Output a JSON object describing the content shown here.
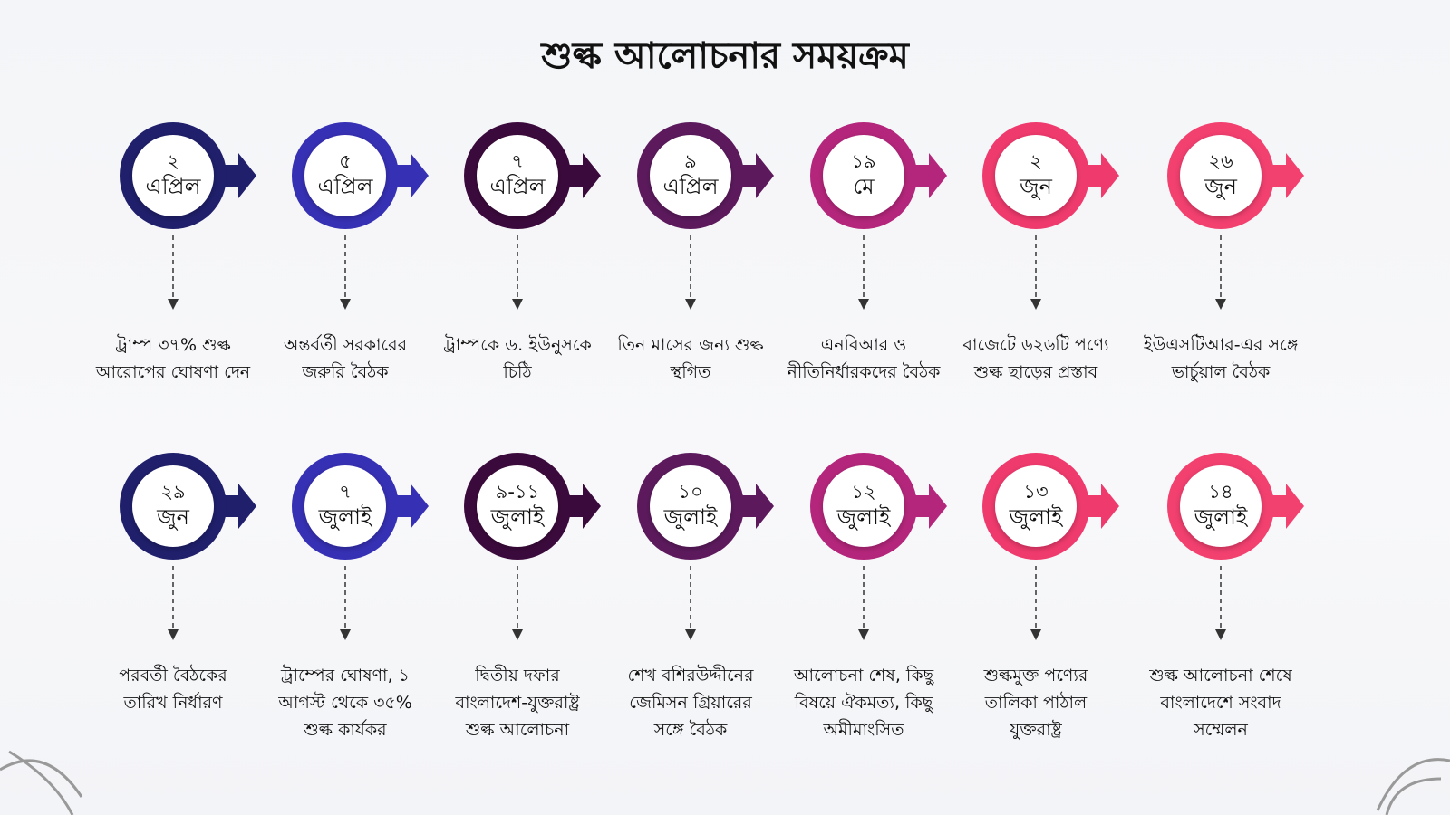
{
  "title": "শুল্ক আলোচনার সময়ক্রম",
  "rows": [
    {
      "events": [
        {
          "day": "২",
          "month": "এপ্রিল",
          "description": "ট্রাম্প ৩৭% শুল্ক আরোপের ঘোষণা দেন"
        },
        {
          "day": "৫",
          "month": "এপ্রিল",
          "description": "অন্তর্বর্তী সরকারের জরুরি বৈঠক"
        },
        {
          "day": "৭",
          "month": "এপ্রিল",
          "description": "ট্রাম্পকে ড. ইউনুসকে চিঠি"
        },
        {
          "day": "৯",
          "month": "এপ্রিল",
          "description": "তিন মাসের জন্য শুল্ক স্থগিত"
        },
        {
          "day": "১৯",
          "month": "মে",
          "description": "এনবিআর ও নীতিনির্ধারকদের বৈঠক"
        },
        {
          "day": "২",
          "month": "জুন",
          "description": "বাজেটে ৬২৬টি পণ্যে শুল্ক ছাড়ের প্রস্তাব"
        },
        {
          "day": "২৬",
          "month": "জুন",
          "description": "ইউএসটিআর-এর সঙ্গে ভার্চুয়াল বৈঠক"
        }
      ]
    },
    {
      "events": [
        {
          "day": "২৯",
          "month": "জুন",
          "description": "পরবর্তী বৈঠকের তারিখ নির্ধারণ"
        },
        {
          "day": "৭",
          "month": "জুলাই",
          "description": "ট্রাম্পের ঘোষণা, ১ আগস্ট থেকে ৩৫% শুল্ক কার্যকর"
        },
        {
          "day": "৯-১১",
          "month": "জুলাই",
          "description": "দ্বিতীয় দফার বাংলাদেশ-যুক্তরাষ্ট্র শুল্ক আলোচনা"
        },
        {
          "day": "১০",
          "month": "জুলাই",
          "description": "শেখ বশিরউদ্দীনের জেমিসন গ্রিয়ারের সঙ্গে বৈঠক"
        },
        {
          "day": "১২",
          "month": "জুলাই",
          "description": "আলোচনা শেষ, কিছু বিষয়ে ঐকমত্য, কিছু অমীমাংসিত"
        },
        {
          "day": "১৩",
          "month": "জুলাই",
          "description": "শুল্কমুক্ত পণ্যের তালিকা পাঠাল যুক্তরাষ্ট্র"
        },
        {
          "day": "১৪",
          "month": "জুলাই",
          "description": "শুল্ক আলোচনা শেষে বাংলাদেশে সংবাদ সম্মেলন"
        }
      ]
    }
  ]
}
